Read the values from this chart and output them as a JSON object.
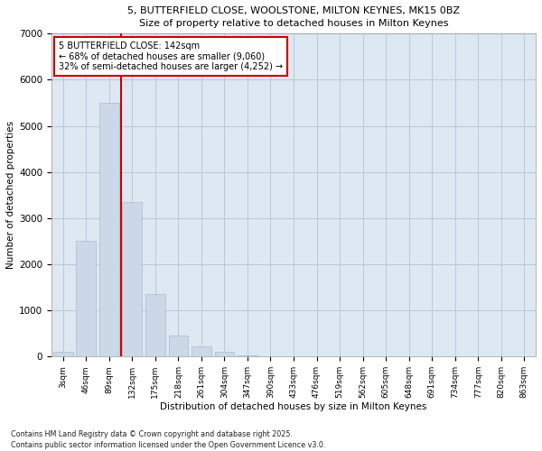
{
  "title1": "5, BUTTERFIELD CLOSE, WOOLSTONE, MILTON KEYNES, MK15 0BZ",
  "title2": "Size of property relative to detached houses in Milton Keynes",
  "xlabel": "Distribution of detached houses by size in Milton Keynes",
  "ylabel": "Number of detached properties",
  "footnote": "Contains HM Land Registry data © Crown copyright and database right 2025.\nContains public sector information licensed under the Open Government Licence v3.0.",
  "bar_color": "#ccd8e8",
  "bar_edge_color": "#aabccc",
  "grid_color": "#b8c8da",
  "background_color": "#dde8f2",
  "vline_color": "#cc0000",
  "vline_x": 2.5,
  "annotation_text": "5 BUTTERFIELD CLOSE: 142sqm\n← 68% of detached houses are smaller (9,060)\n32% of semi-detached houses are larger (4,252) →",
  "annotation_box_edgecolor": "#cc0000",
  "categories": [
    "3sqm",
    "46sqm",
    "89sqm",
    "132sqm",
    "175sqm",
    "218sqm",
    "261sqm",
    "304sqm",
    "347sqm",
    "390sqm",
    "433sqm",
    "476sqm",
    "519sqm",
    "562sqm",
    "605sqm",
    "648sqm",
    "691sqm",
    "734sqm",
    "777sqm",
    "820sqm",
    "863sqm"
  ],
  "values": [
    100,
    2500,
    5500,
    3350,
    1350,
    450,
    230,
    100,
    25,
    0,
    0,
    0,
    0,
    0,
    0,
    0,
    0,
    0,
    0,
    0,
    0
  ],
  "ylim": [
    0,
    7000
  ],
  "yticks": [
    0,
    1000,
    2000,
    3000,
    4000,
    5000,
    6000,
    7000
  ]
}
